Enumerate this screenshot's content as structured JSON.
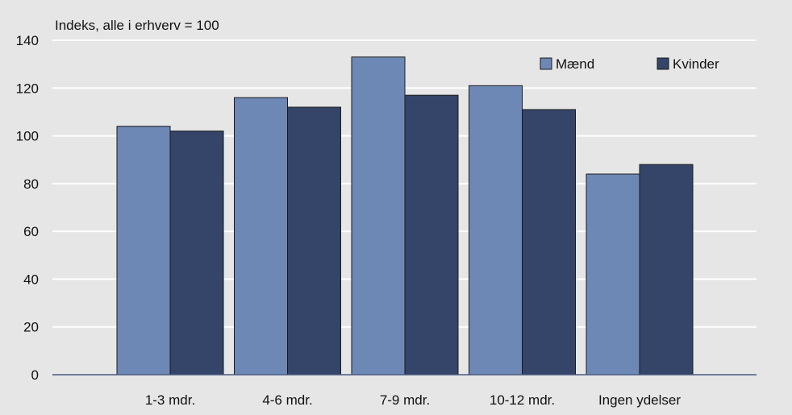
{
  "chart_data": {
    "type": "bar",
    "ylabel": "Indeks, alle i erhverv = 100",
    "categories": [
      "1-3 mdr.",
      "4-6 mdr.",
      "7-9 mdr.",
      "10-12 mdr.",
      "Ingen ydelser"
    ],
    "series": [
      {
        "name": "Mænd",
        "color": "#6e88b5",
        "values": [
          104,
          116,
          133,
          121,
          84
        ]
      },
      {
        "name": "Kvinder",
        "color": "#344569",
        "values": [
          102,
          112,
          117,
          111,
          88
        ]
      }
    ],
    "ylim": [
      0,
      140
    ],
    "yticks": [
      0,
      20,
      40,
      60,
      80,
      100,
      120,
      140
    ],
    "grid": true,
    "legend": "top-right"
  }
}
